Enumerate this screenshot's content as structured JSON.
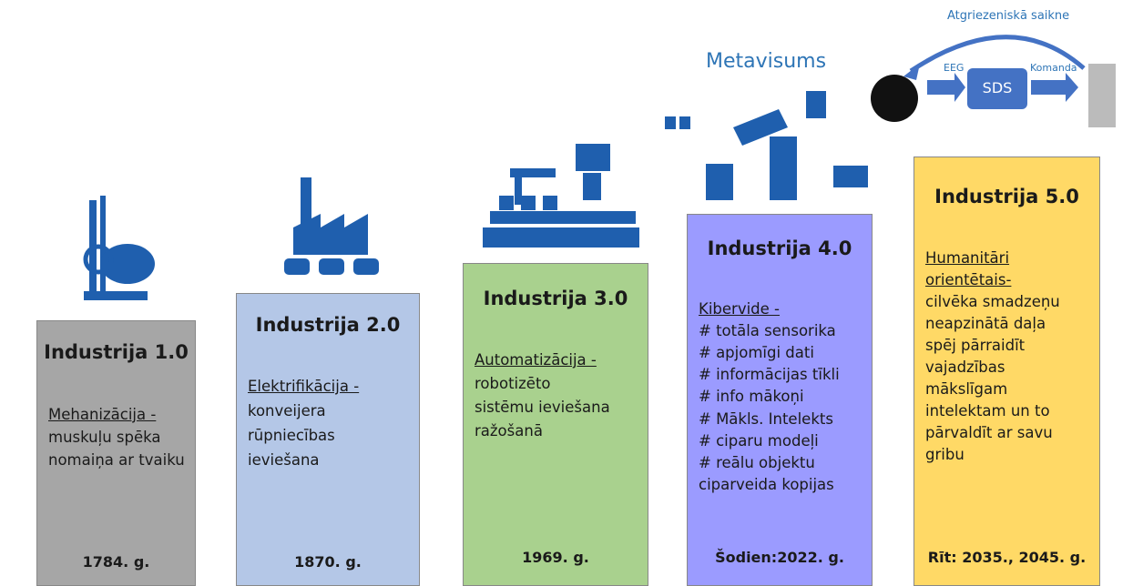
{
  "metaverse_label": "Metavisums",
  "bci": {
    "feedback": "Atgriezeniskā saikne",
    "eeg": "EEG",
    "box": "SDS",
    "command": "Komanda"
  },
  "columns": [
    {
      "title": "Industrija 1.0",
      "keyword": [
        "Mehanizācija -"
      ],
      "lines": [
        "muskuļu spēka",
        "nomaiņa ar tvaiku"
      ],
      "year": "1784. g."
    },
    {
      "title": "Industrija 2.0",
      "keyword": [
        "Elektrifikācija -"
      ],
      "lines": [
        "konveijera",
        "rūpniecības",
        "ieviešana"
      ],
      "year": "1870. g."
    },
    {
      "title": "Industrija 3.0",
      "keyword": [
        "Automatizācija -"
      ],
      "lines": [
        "robotizēto",
        "sistēmu ieviešana",
        "ražošanā"
      ],
      "year": "1969. g."
    },
    {
      "title": "Industrija 4.0",
      "keyword": [
        "Kibervide -"
      ],
      "lines": [
        "# totāla sensorika",
        "# apjomīgi dati",
        "# informācijas tīkli",
        "# info mākoņi",
        "# Mākls. Intelekts",
        "# ciparu modeļi",
        "# reālu objektu",
        "ciparveida kopijas"
      ],
      "year": "Šodien:2022. g."
    },
    {
      "title": "Industrija 5.0",
      "keyword": [
        "Humanitāri",
        "orientētais-"
      ],
      "lines": [
        "cilvēka smadzeņu",
        "neapzinātā daļa",
        "spēj pārraidīt",
        "vajadzības",
        "mākslīgam",
        "intelektam un to",
        "pārvaldīt ar savu",
        "gribu"
      ],
      "year": "Rīt: 2035., 2045. g."
    }
  ]
}
